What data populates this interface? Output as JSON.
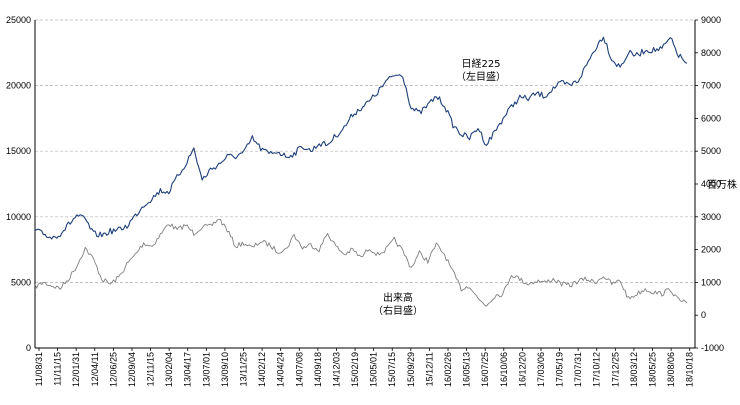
{
  "chart_data": {
    "type": "line",
    "title": "",
    "xlabel": "",
    "colors": {
      "nikkei": "#1f3f7a",
      "volume": "#808080",
      "grid": "#b4b4b4",
      "axis": "#000000"
    },
    "x_tick_labels": [
      "11/08/31",
      "11/11/15",
      "12/01/31",
      "12/04/11",
      "12/06/25",
      "12/09/04",
      "12/11/15",
      "13/02/04",
      "13/04/17",
      "13/07/01",
      "13/09/10",
      "13/11/25",
      "14/02/12",
      "14/04/24",
      "14/07/08",
      "14/09/18",
      "14/12/03",
      "15/02/19",
      "15/05/01",
      "15/07/15",
      "15/09/29",
      "15/12/11",
      "16/02/26",
      "16/05/13",
      "16/07/25",
      "16/10/06",
      "16/12/20",
      "17/03/06",
      "17/05/19",
      "17/07/31",
      "17/10/12",
      "17/12/25",
      "18/03/12",
      "18/05/25",
      "18/08/06",
      "18/10/18"
    ],
    "left_axis": {
      "ylim": [
        0,
        25000
      ],
      "ticks": [
        "0",
        "5000",
        "10000",
        "15000",
        "20000",
        "25000"
      ],
      "tick_values": [
        0,
        5000,
        10000,
        15000,
        20000,
        25000
      ]
    },
    "right_axis": {
      "ylim": [
        -1000,
        9000
      ],
      "ticks": [
        "-1000",
        "0",
        "1000",
        "2000",
        "3000",
        "4000",
        "5000",
        "6000",
        "7000",
        "8000",
        "9000"
      ],
      "tick_values": [
        -1000,
        0,
        1000,
        2000,
        3000,
        4000,
        5000,
        6000,
        7000,
        8000,
        9000
      ],
      "unit_label": "百万株"
    },
    "series": [
      {
        "name": "日経225",
        "axis": "left",
        "label_lines": [
          "日経225",
          "（左目盛）"
        ],
        "values": [
          8950,
          8700,
          8400,
          8700,
          9400,
          10100,
          9800,
          8700,
          8600,
          8900,
          9000,
          9300,
          10100,
          10900,
          11400,
          12000,
          11900,
          13000,
          14000,
          15200,
          12800,
          13600,
          14000,
          14600,
          14600,
          14900,
          16000,
          15200,
          14800,
          15000,
          14600,
          14800,
          15400,
          15000,
          15600,
          15500,
          16200,
          16800,
          17800,
          18300,
          18800,
          19500,
          20300,
          20800,
          20800,
          18300,
          17900,
          18500,
          19200,
          18500,
          17000,
          16300,
          16000,
          16800,
          15500,
          16500,
          17500,
          18400,
          19100,
          19000,
          19400,
          19200,
          19800,
          20200,
          20000,
          20400,
          21600,
          22800,
          23800,
          22000,
          21400,
          22500,
          22300,
          22700,
          22700,
          22800,
          23600,
          22300,
          21700
        ]
      },
      {
        "name": "出来高",
        "axis": "right",
        "label_lines": [
          "出来高",
          "（右目盛）"
        ],
        "values": [
          860,
          1000,
          900,
          820,
          1100,
          1500,
          2050,
          1700,
          1100,
          950,
          1150,
          1550,
          1850,
          2200,
          2100,
          2450,
          2800,
          2600,
          2750,
          2500,
          2700,
          2700,
          2950,
          2600,
          2100,
          2200,
          2050,
          2250,
          2150,
          1950,
          2000,
          2450,
          2050,
          2150,
          2000,
          2500,
          2100,
          1850,
          2000,
          1750,
          2050,
          1850,
          2000,
          2300,
          1950,
          1450,
          1900,
          1650,
          2150,
          1850,
          1300,
          800,
          900,
          500,
          300,
          600,
          650,
          1250,
          1100,
          950,
          1050,
          1000,
          1100,
          950,
          900,
          1050,
          1100,
          1000,
          1200,
          950,
          1050,
          500,
          650,
          800,
          700,
          650,
          800,
          450,
          380
        ]
      }
    ]
  }
}
